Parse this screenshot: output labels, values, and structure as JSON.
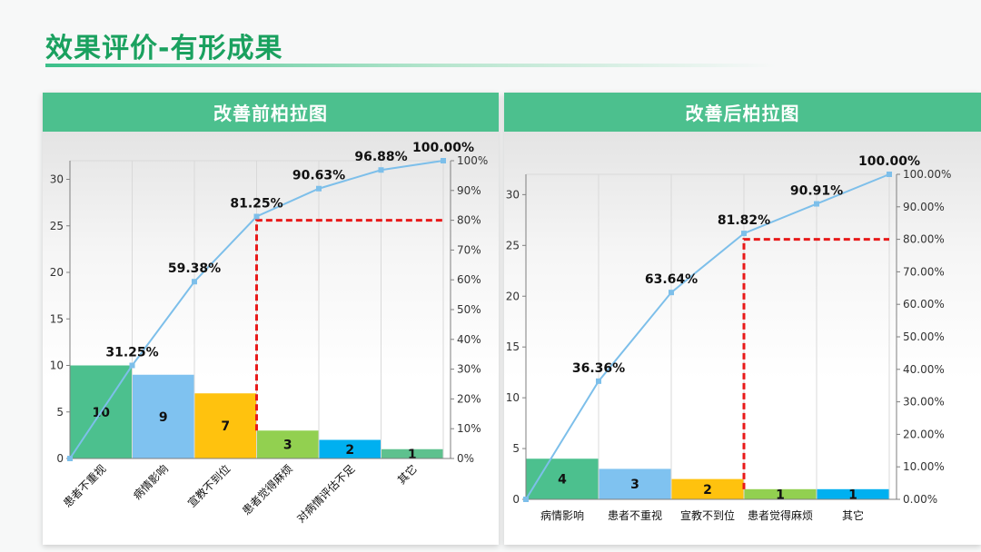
{
  "page": {
    "title": "效果评价-有形成果"
  },
  "chart_data": [
    {
      "type": "bar",
      "title": "改善前柏拉图",
      "categories": [
        "患者不重视",
        "病情影响",
        "宣教不到位",
        "患者觉得麻烦",
        "对病情评估不足",
        "其它"
      ],
      "values": [
        10,
        9,
        7,
        3,
        2,
        1
      ],
      "bar_colors": [
        "#4cc08e",
        "#7fc2f0",
        "#ffc20e",
        "#92d050",
        "#00b0f0",
        "#5ec18e"
      ],
      "cumulative_percent": [
        31.25,
        59.38,
        81.25,
        90.63,
        96.88,
        100.0
      ],
      "cumulative_labels": [
        "31.25%",
        "59.38%",
        "81.25%",
        "90.63%",
        "96.88%",
        "100.00%"
      ],
      "line_color": "#7dbfea",
      "cutoff_color": "#e81a1a",
      "cutoff_percent": 80,
      "cutoff_after_category_index": 2,
      "ylim": [
        0,
        32
      ],
      "y_ticks": [
        "0",
        "5",
        "10",
        "15",
        "20",
        "25",
        "30"
      ],
      "y2lim": [
        0,
        100
      ],
      "y2_ticks": [
        "0%",
        "10%",
        "20%",
        "30%",
        "40%",
        "50%",
        "60%",
        "70%",
        "80%",
        "90%",
        "100%"
      ],
      "rotated_categories": true,
      "xlabel": "",
      "ylabel": ""
    },
    {
      "type": "bar",
      "title": "改善后柏拉图",
      "categories": [
        "病情影响",
        "患者不重视",
        "宣教不到位",
        "患者觉得麻烦",
        "其它"
      ],
      "values": [
        4,
        3,
        2,
        1,
        1
      ],
      "bar_colors": [
        "#4cc08e",
        "#7fc2f0",
        "#ffc20e",
        "#92d050",
        "#00b0f0"
      ],
      "cumulative_percent": [
        36.36,
        63.64,
        81.82,
        90.91,
        100.0
      ],
      "cumulative_labels": [
        "36.36%",
        "63.64%",
        "81.82%",
        "90.91%",
        "100.00%"
      ],
      "line_color": "#7dbfea",
      "cutoff_color": "#e81a1a",
      "cutoff_percent": 80,
      "cutoff_after_category_index": 2,
      "ylim": [
        0,
        32
      ],
      "y_ticks": [
        "0",
        "5",
        "10",
        "15",
        "20",
        "25",
        "30"
      ],
      "y2lim": [
        0,
        100
      ],
      "y2_ticks": [
        "0.00%",
        "10.00%",
        "20.00%",
        "30.00%",
        "40.00%",
        "50.00%",
        "60.00%",
        "70.00%",
        "80.00%",
        "90.00%",
        "100.00%"
      ],
      "rotated_categories": false,
      "xlabel": "",
      "ylabel": ""
    }
  ]
}
